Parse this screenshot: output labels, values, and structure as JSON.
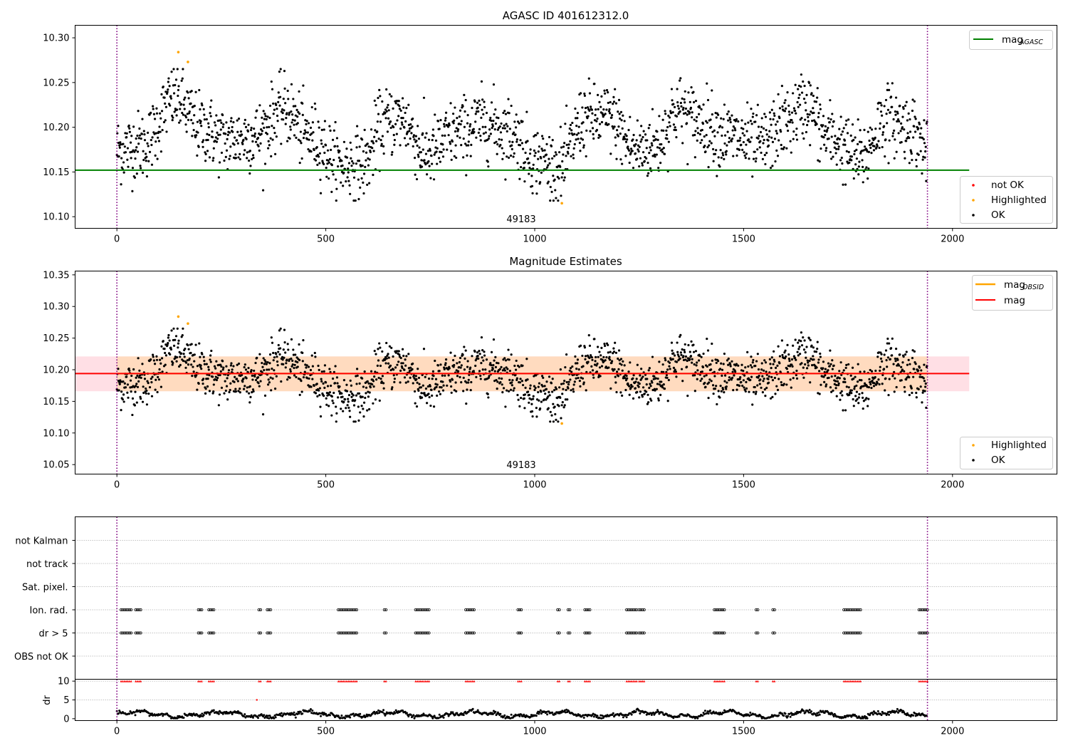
{
  "colors": {
    "ok": "#000000",
    "highlighted": "#ffa500",
    "not_ok": "#ff0000",
    "agasc_line": "#008000",
    "mag_line": "#ff0000",
    "mag_obsid_line": "#ffa500",
    "vline": "#800080",
    "band_outer": "#ffc0cb",
    "band_inner": "#ffdab9",
    "grid": "#b0b0b0"
  },
  "chart_data": [
    {
      "type": "scatter",
      "title": "AGASC ID 401612312.0",
      "xlim": [
        -100,
        2250
      ],
      "ylim": [
        10.087,
        10.314
      ],
      "x_ticks": [
        0,
        500,
        1000,
        1500,
        2000
      ],
      "y_ticks": [
        10.1,
        10.15,
        10.2,
        10.25,
        10.3
      ],
      "y_tick_labels": [
        "10.10",
        "10.15",
        "10.20",
        "10.25",
        "10.30"
      ],
      "annotation": {
        "text": "49183",
        "x": 970,
        "y": 10.096
      },
      "vlines": [
        0,
        1940
      ],
      "hlines": [
        {
          "name": "mag_AGASC",
          "y": 10.152,
          "x_range": [
            -100,
            2040
          ],
          "color": "green"
        }
      ],
      "series": [
        {
          "name": "not OK",
          "color": "red",
          "points": []
        },
        {
          "name": "Highlighted",
          "color": "orange",
          "points": [
            [
              147,
              10.284
            ],
            [
              170,
              10.273
            ],
            [
              1065,
              10.115
            ]
          ]
        },
        {
          "name": "OK",
          "color": "black",
          "n": 1940
        }
      ],
      "legend": {
        "upper_right": [
          "mag_AGASC"
        ],
        "lower_right": [
          "not OK",
          "Highlighted",
          "OK"
        ]
      }
    },
    {
      "type": "scatter",
      "title": "Magnitude Estimates",
      "xlim": [
        -100,
        2250
      ],
      "ylim": [
        10.035,
        10.356
      ],
      "x_ticks": [
        0,
        500,
        1000,
        1500,
        2000
      ],
      "y_ticks": [
        10.05,
        10.1,
        10.15,
        10.2,
        10.25,
        10.3,
        10.35
      ],
      "y_tick_labels": [
        "10.05",
        "10.10",
        "10.15",
        "10.20",
        "10.25",
        "10.30",
        "10.35"
      ],
      "annotation": {
        "text": "49183",
        "x": 970,
        "y": 10.047
      },
      "vlines": [
        0,
        1940
      ],
      "bands": [
        {
          "y_range": [
            10.166,
            10.221
          ],
          "x_range": [
            -100,
            2040
          ],
          "color": "pink"
        },
        {
          "y_range": [
            10.166,
            10.221
          ],
          "x_range": [
            0,
            1940
          ],
          "color": "peachpuff"
        }
      ],
      "hlines": [
        {
          "name": "mag",
          "y": 10.194,
          "x_range": [
            -100,
            2040
          ],
          "color": "red"
        },
        {
          "name": "mag_OBSID",
          "y": 10.194,
          "x_range": [
            0,
            1940
          ],
          "color": "orange"
        }
      ],
      "series": [
        {
          "name": "Highlighted",
          "color": "orange",
          "points": [
            [
              147,
              10.284
            ],
            [
              170,
              10.273
            ],
            [
              1065,
              10.115
            ]
          ]
        },
        {
          "name": "OK",
          "color": "black",
          "n": 1940
        }
      ],
      "legend": {
        "upper_right": [
          "mag_OBSID",
          "mag"
        ],
        "lower_right": [
          "Highlighted",
          "OK"
        ]
      }
    },
    {
      "type": "scatter",
      "xlim": [
        -100,
        2250
      ],
      "ylim": [
        -0.5,
        6.5
      ],
      "y_tick_labels": [
        "not Kalman",
        "not track",
        "Sat. pixel.",
        "Ion. rad.",
        "dr > 5",
        "OBS not OK"
      ],
      "flag_clusters": [
        [
          10,
          35
        ],
        [
          45,
          60
        ],
        [
          195,
          205
        ],
        [
          220,
          235
        ],
        [
          340,
          345
        ],
        [
          360,
          370
        ],
        [
          530,
          575
        ],
        [
          640,
          645
        ],
        [
          715,
          750
        ],
        [
          835,
          855
        ],
        [
          960,
          970
        ],
        [
          1055,
          1060
        ],
        [
          1080,
          1085
        ],
        [
          1120,
          1135
        ],
        [
          1220,
          1245
        ],
        [
          1250,
          1265
        ],
        [
          1430,
          1455
        ],
        [
          1530,
          1535
        ],
        [
          1570,
          1575
        ],
        [
          1740,
          1780
        ],
        [
          1920,
          1940
        ]
      ],
      "vlines": [
        0,
        1940
      ]
    },
    {
      "type": "scatter",
      "ylabel": "dr",
      "xlim": [
        -100,
        2250
      ],
      "ylim": [
        -0.5,
        10.5
      ],
      "x_ticks": [
        0,
        500,
        1000,
        1500,
        2000
      ],
      "y_ticks": [
        0,
        5,
        10
      ],
      "outlier": [
        335,
        5.0
      ],
      "vlines": [
        0,
        1940
      ]
    }
  ]
}
